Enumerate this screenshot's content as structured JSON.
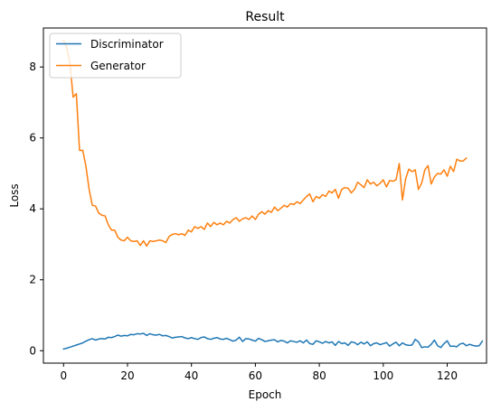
{
  "chart_data": {
    "type": "line",
    "title": "Result",
    "xlabel": "Epoch",
    "ylabel": "Loss",
    "xlim": [
      -6.3,
      132.3
    ],
    "ylim": [
      -0.35,
      9.1
    ],
    "xticks": [
      0,
      20,
      40,
      60,
      80,
      100,
      120
    ],
    "yticks": [
      0,
      2,
      4,
      6,
      8
    ],
    "grid": false,
    "legend_position": "top-left",
    "series": [
      {
        "name": "Discriminator",
        "color": "#1f77b4",
        "values": [
          0.05,
          0.07,
          0.1,
          0.13,
          0.16,
          0.19,
          0.22,
          0.27,
          0.31,
          0.34,
          0.3,
          0.33,
          0.34,
          0.33,
          0.38,
          0.37,
          0.4,
          0.44,
          0.41,
          0.43,
          0.42,
          0.46,
          0.45,
          0.48,
          0.47,
          0.49,
          0.43,
          0.48,
          0.45,
          0.44,
          0.46,
          0.42,
          0.43,
          0.4,
          0.36,
          0.38,
          0.39,
          0.4,
          0.36,
          0.34,
          0.37,
          0.34,
          0.32,
          0.37,
          0.39,
          0.34,
          0.32,
          0.35,
          0.37,
          0.33,
          0.32,
          0.35,
          0.31,
          0.27,
          0.3,
          0.38,
          0.26,
          0.34,
          0.33,
          0.3,
          0.27,
          0.35,
          0.31,
          0.26,
          0.28,
          0.3,
          0.31,
          0.25,
          0.29,
          0.27,
          0.22,
          0.28,
          0.26,
          0.24,
          0.28,
          0.22,
          0.3,
          0.2,
          0.18,
          0.28,
          0.25,
          0.21,
          0.26,
          0.22,
          0.25,
          0.15,
          0.26,
          0.2,
          0.22,
          0.15,
          0.25,
          0.23,
          0.17,
          0.24,
          0.19,
          0.25,
          0.14,
          0.2,
          0.22,
          0.17,
          0.2,
          0.23,
          0.13,
          0.19,
          0.24,
          0.14,
          0.22,
          0.17,
          0.15,
          0.16,
          0.32,
          0.25,
          0.09,
          0.11,
          0.1,
          0.18,
          0.3,
          0.14,
          0.09,
          0.2,
          0.28,
          0.12,
          0.13,
          0.11,
          0.19,
          0.21,
          0.14,
          0.18,
          0.15,
          0.13,
          0.14,
          0.27
        ]
      },
      {
        "name": "Generator",
        "color": "#ff7f0e",
        "values": [
          8.75,
          8.55,
          8.1,
          7.15,
          7.25,
          5.65,
          5.65,
          5.2,
          4.55,
          4.1,
          4.08,
          3.88,
          3.82,
          3.8,
          3.55,
          3.4,
          3.4,
          3.2,
          3.12,
          3.1,
          3.2,
          3.1,
          3.08,
          3.1,
          2.97,
          3.1,
          2.95,
          3.1,
          3.08,
          3.1,
          3.12,
          3.1,
          3.05,
          3.22,
          3.28,
          3.3,
          3.27,
          3.3,
          3.25,
          3.4,
          3.35,
          3.5,
          3.45,
          3.5,
          3.42,
          3.6,
          3.5,
          3.62,
          3.55,
          3.6,
          3.55,
          3.65,
          3.6,
          3.7,
          3.75,
          3.65,
          3.72,
          3.75,
          3.7,
          3.8,
          3.7,
          3.85,
          3.92,
          3.85,
          3.95,
          3.9,
          4.05,
          3.95,
          4.02,
          4.1,
          4.05,
          4.15,
          4.12,
          4.2,
          4.15,
          4.25,
          4.35,
          4.42,
          4.2,
          4.35,
          4.3,
          4.4,
          4.35,
          4.5,
          4.45,
          4.55,
          4.3,
          4.55,
          4.6,
          4.58,
          4.45,
          4.55,
          4.75,
          4.68,
          4.6,
          4.82,
          4.7,
          4.75,
          4.65,
          4.72,
          4.82,
          4.62,
          4.8,
          4.78,
          4.82,
          5.28,
          4.25,
          4.85,
          5.12,
          5.05,
          5.1,
          4.55,
          4.72,
          5.1,
          5.22,
          4.7,
          4.9,
          5.0,
          4.98,
          5.1,
          4.92,
          5.2,
          5.05,
          5.4,
          5.35,
          5.35,
          5.43
        ]
      }
    ]
  }
}
